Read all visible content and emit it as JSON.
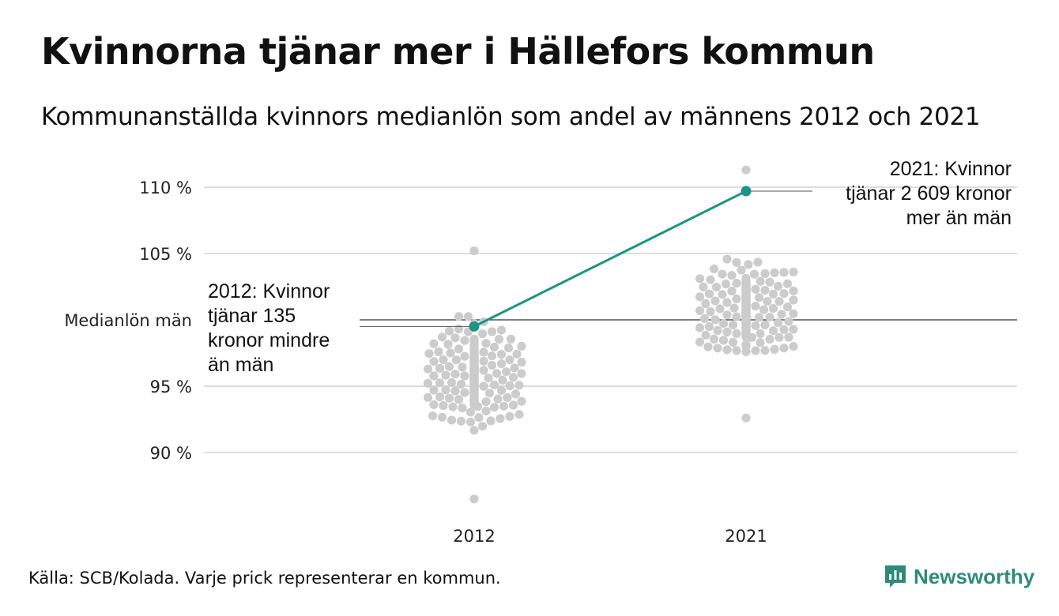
{
  "title": "Kvinnorna tjänar mer i Hällefors kommun",
  "subtitle": "Kommunanställda kvinnors medianlön som andel av männens 2012 och 2021",
  "source": "Källa: SCB/Kolada. Varje prick representerar en kommun.",
  "brand": {
    "name": "Newsworthy",
    "icon": "bar-chart-speech-icon",
    "color": "#2e8b7a"
  },
  "colors": {
    "dots": "#cccccc",
    "highlight": "#1a9485",
    "baseline": "#333333",
    "grid": "#dddddd"
  },
  "chart_data": {
    "type": "scatter",
    "title": "Kvinnorna tjänar mer i Hällefors kommun",
    "subtitle": "Kommunanställda kvinnors medianlön som andel av männens 2012 och 2021",
    "categories": [
      "2012",
      "2021"
    ],
    "ylim": [
      86,
      112
    ],
    "y_ticks": [
      {
        "value": 110,
        "label": "110 %"
      },
      {
        "value": 105,
        "label": "105 %"
      },
      {
        "value": 100,
        "label": "Medianlön män"
      },
      {
        "value": 95,
        "label": "95 %"
      },
      {
        "value": 90,
        "label": "90 %"
      }
    ],
    "grid": true,
    "beeswarm": [
      {
        "year": "2012",
        "n": 290,
        "center": 95.8,
        "spread": 2.4,
        "min": 86.5,
        "max": 105.2
      },
      {
        "year": "2021",
        "n": 290,
        "center": 100.6,
        "spread": 2.3,
        "min": 92.6,
        "max": 111.3
      }
    ],
    "highlight": {
      "name": "Hällefors",
      "values": [
        {
          "x": "2012",
          "y": 99.5
        },
        {
          "x": "2021",
          "y": 109.7
        }
      ]
    },
    "annotations": [
      {
        "x": "2012",
        "y": 99.5,
        "lines": [
          "2012: Kvinnor",
          "tjänar 135",
          "kronor mindre",
          "än män"
        ]
      },
      {
        "x": "2021",
        "y": 109.7,
        "lines": [
          "2021: Kvinnor",
          "tjänar 2 609 kronor",
          "mer än män"
        ]
      }
    ]
  }
}
